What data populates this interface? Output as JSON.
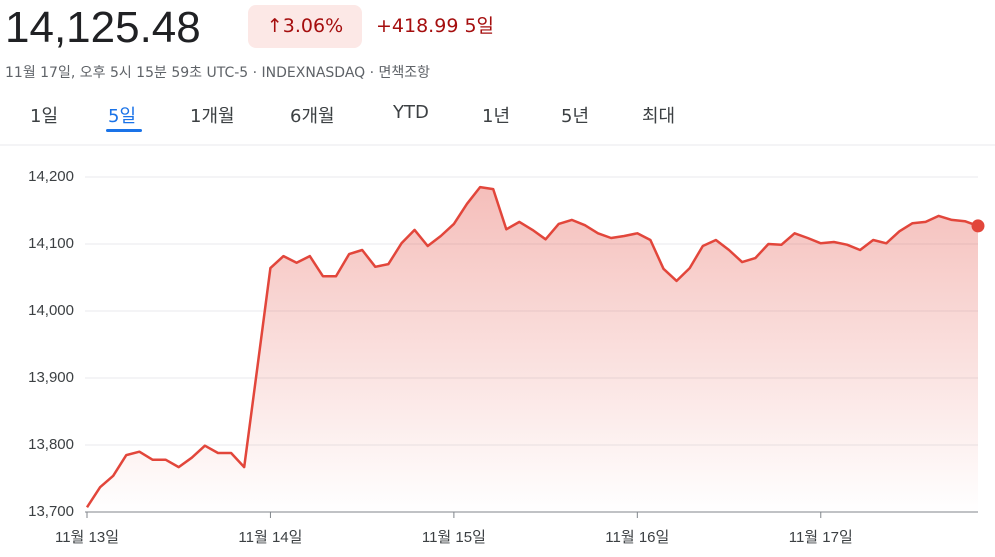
{
  "header": {
    "price": "14,125.48",
    "change_percent": "3.06%",
    "change": "+418.99",
    "period": "5일",
    "subtitle": "11월 17일, 오후 5시 15분 59초 UTC-5 · INDEXNASDAQ · 면책조항"
  },
  "tabs": {
    "items": [
      "1일",
      "5일",
      "1개월",
      "6개월",
      "YTD",
      "1년",
      "5년",
      "최대"
    ],
    "selected": 1
  },
  "chart_data": {
    "type": "line",
    "color": "#e2463b",
    "grid": true,
    "values": [
      13707,
      13737,
      13754,
      13785,
      13790,
      13778,
      13778,
      13767,
      13781,
      13799,
      13788,
      13788,
      13767,
      13915,
      14064,
      14082,
      14072,
      14082,
      14052,
      14052,
      14085,
      14091,
      14066,
      14070,
      14101,
      14121,
      14097,
      14112,
      14130,
      14160,
      14185,
      14182,
      14122,
      14133,
      14121,
      14107,
      14130,
      14136,
      14128,
      14116,
      14109,
      14112,
      14116,
      14106,
      14063,
      14045,
      14064,
      14097,
      14106,
      14091,
      14073,
      14079,
      14100,
      14099,
      14116,
      14109,
      14101,
      14103,
      14099,
      14091,
      14106,
      14101,
      14119,
      14131,
      14133,
      14142,
      14136,
      14134,
      14127
    ],
    "xlim": [
      0,
      68
    ],
    "xticks": [
      {
        "value": 0,
        "label": "11월 13일"
      },
      {
        "value": 14,
        "label": "11월 14일"
      },
      {
        "value": 28,
        "label": "11월 15일"
      },
      {
        "value": 42,
        "label": "11월 16일"
      },
      {
        "value": 56,
        "label": "11월 17일"
      }
    ],
    "ylim": [
      13700,
      14250
    ],
    "yticks": [
      {
        "value": 13700,
        "label": "13,700"
      },
      {
        "value": 13800,
        "label": "13,800"
      },
      {
        "value": 13900,
        "label": "13,900"
      },
      {
        "value": 14000,
        "label": "14,000"
      },
      {
        "value": 14100,
        "label": "14,100"
      },
      {
        "value": 14200,
        "label": "14,200"
      }
    ]
  }
}
